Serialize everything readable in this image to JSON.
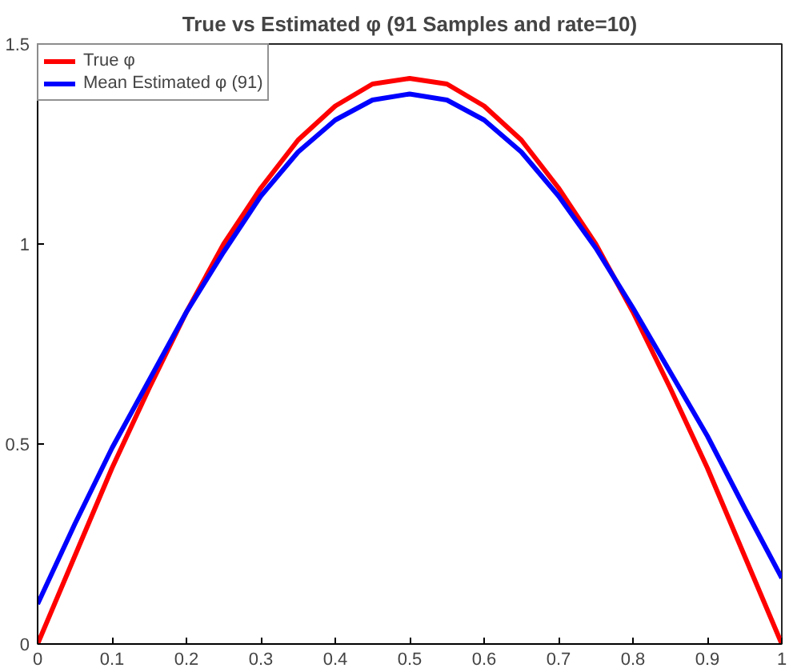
{
  "chart_data": {
    "type": "line",
    "title": "True vs Estimated φ (91 Samples and rate=10)",
    "x": [
      0,
      0.05,
      0.1,
      0.15,
      0.2,
      0.25,
      0.3,
      0.35,
      0.4,
      0.45,
      0.5,
      0.55,
      0.6,
      0.65,
      0.7,
      0.75,
      0.8,
      0.85,
      0.9,
      0.95,
      1
    ],
    "series": [
      {
        "name": "True φ",
        "color": "#ff0000",
        "values": [
          0,
          0.22,
          0.44,
          0.64,
          0.83,
          1.0,
          1.14,
          1.26,
          1.345,
          1.4,
          1.414,
          1.4,
          1.345,
          1.26,
          1.14,
          1.0,
          0.83,
          0.64,
          0.44,
          0.22,
          0
        ]
      },
      {
        "name": "Mean Estimated φ (91)",
        "color": "#0000ff",
        "values": [
          0.1,
          0.3,
          0.49,
          0.66,
          0.83,
          0.98,
          1.12,
          1.23,
          1.31,
          1.36,
          1.375,
          1.36,
          1.31,
          1.23,
          1.12,
          0.99,
          0.84,
          0.68,
          0.52,
          0.34,
          0.165
        ]
      }
    ],
    "xlim": [
      0,
      1
    ],
    "ylim": [
      0,
      1.5
    ],
    "xticks": [
      0,
      0.1,
      0.2,
      0.3,
      0.4,
      0.5,
      0.6,
      0.7,
      0.8,
      0.9,
      1
    ],
    "yticks": [
      0,
      0.5,
      1,
      1.5
    ],
    "grid": false,
    "legend": "top left",
    "line_style": "solid"
  }
}
